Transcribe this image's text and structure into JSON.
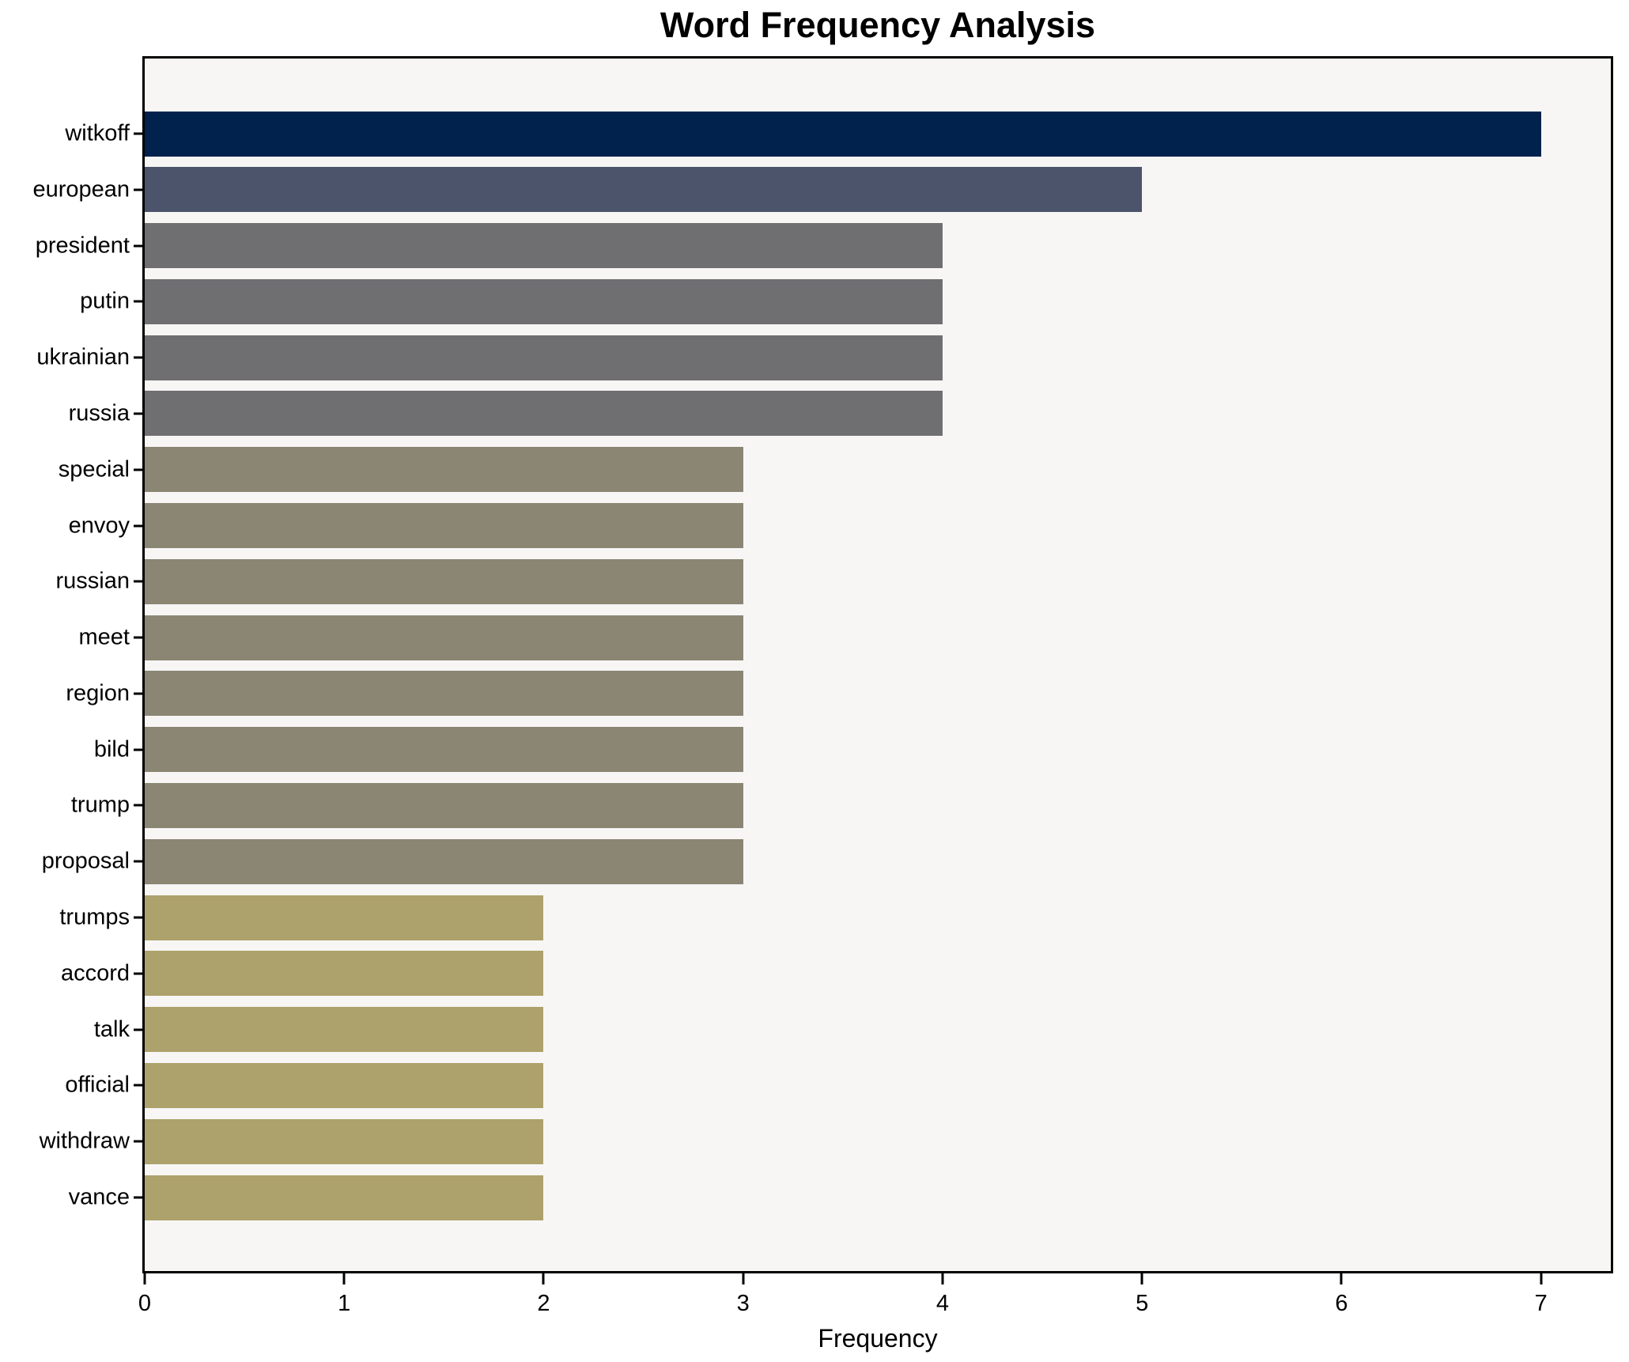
{
  "chart_data": {
    "type": "bar",
    "orientation": "horizontal",
    "title": "Word Frequency Analysis",
    "xlabel": "Frequency",
    "ylabel": "",
    "categories": [
      "witkoff",
      "european",
      "president",
      "putin",
      "ukrainian",
      "russia",
      "special",
      "envoy",
      "russian",
      "meet",
      "region",
      "bild",
      "trump",
      "proposal",
      "trumps",
      "accord",
      "talk",
      "official",
      "withdraw",
      "vance"
    ],
    "values": [
      7,
      5,
      4,
      4,
      4,
      4,
      3,
      3,
      3,
      3,
      3,
      3,
      3,
      3,
      2,
      2,
      2,
      2,
      2,
      2
    ],
    "bar_colors": [
      "#00224d",
      "#4c546c",
      "#6f6e71",
      "#6f6e71",
      "#6f6e71",
      "#6f6e71",
      "#8b8674",
      "#8b8674",
      "#8b8674",
      "#8b8674",
      "#8b8674",
      "#8b8674",
      "#8b8674",
      "#8b8674",
      "#ada26b",
      "#ada26b",
      "#ada26b",
      "#ada26b",
      "#ada26b",
      "#ada26b"
    ],
    "xticks": [
      0,
      1,
      2,
      3,
      4,
      5,
      6,
      7
    ],
    "xlim": [
      0,
      7.35
    ],
    "grid": false,
    "legend": false,
    "plot_background": "#f7f6f5",
    "figure_background": "#ffffff",
    "axis_color": "#000000",
    "text_color": "#000000"
  }
}
